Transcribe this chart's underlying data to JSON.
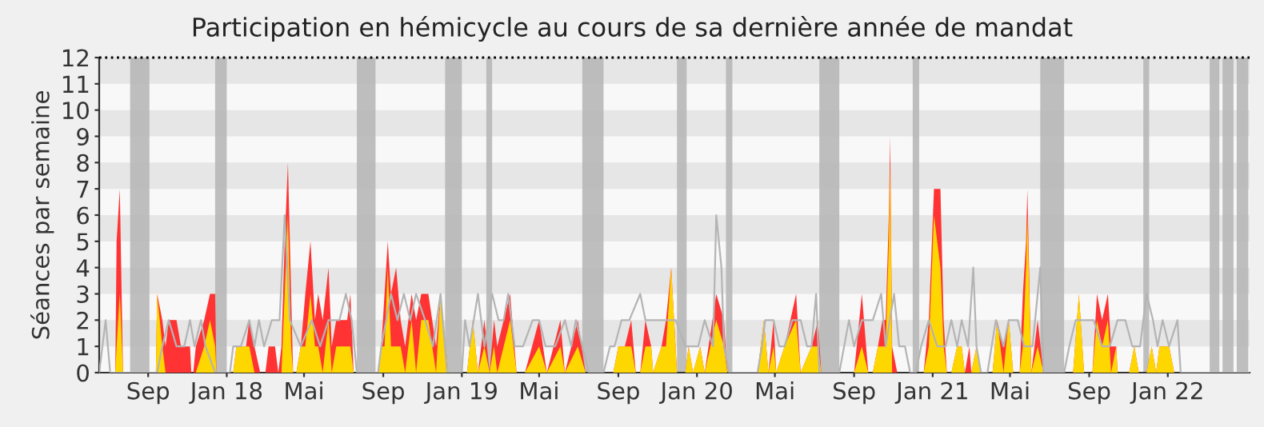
{
  "chart_data": {
    "type": "area",
    "title": "Participation en hémicycle au cours de sa dernière année de mandat",
    "ylabel": "Séances par semaine",
    "xlim": [
      "2017-06-17",
      "2022-05-08"
    ],
    "ylim": [
      0,
      12
    ],
    "yticks": [
      0,
      1,
      2,
      3,
      4,
      5,
      6,
      7,
      8,
      9,
      10,
      11,
      12
    ],
    "xticks": [
      {
        "value": "2017-09-01",
        "label": "Sep"
      },
      {
        "value": "2018-01-01",
        "label": "Jan 18"
      },
      {
        "value": "2018-05-01",
        "label": "Mai"
      },
      {
        "value": "2018-09-01",
        "label": "Sep"
      },
      {
        "value": "2019-01-01",
        "label": "Jan 19"
      },
      {
        "value": "2019-05-01",
        "label": "Mai"
      },
      {
        "value": "2019-09-01",
        "label": "Sep"
      },
      {
        "value": "2020-01-01",
        "label": "Jan 20"
      },
      {
        "value": "2020-05-01",
        "label": "Mai"
      },
      {
        "value": "2020-09-01",
        "label": "Sep"
      },
      {
        "value": "2021-01-01",
        "label": "Jan 21"
      },
      {
        "value": "2021-05-01",
        "label": "Mai"
      },
      {
        "value": "2021-09-01",
        "label": "Sep"
      },
      {
        "value": "2022-01-01",
        "label": "Jan 22"
      }
    ],
    "legend": false,
    "x": [
      "2017-06-17",
      "2017-07-12",
      "2017-07-14",
      "2017-07-19",
      "2017-07-24",
      "2017-09-13",
      "2017-09-15",
      "2017-09-23",
      "2017-09-28",
      "2017-10-03",
      "2017-10-15",
      "2017-10-22",
      "2017-11-05",
      "2017-11-07",
      "2017-11-10",
      "2017-11-14",
      "2017-11-27",
      "2017-12-06",
      "2017-12-14",
      "2017-12-16",
      "2018-01-11",
      "2018-01-16",
      "2018-01-31",
      "2018-02-05",
      "2018-02-13",
      "2018-02-22",
      "2018-03-02",
      "2018-03-07",
      "2018-03-17",
      "2018-03-22",
      "2018-03-27",
      "2018-04-01",
      "2018-04-06",
      "2018-04-11",
      "2018-04-14",
      "2018-04-19",
      "2018-04-26",
      "2018-05-03",
      "2018-05-11",
      "2018-05-18",
      "2018-05-23",
      "2018-05-30",
      "2018-06-08",
      "2018-06-13",
      "2018-06-20",
      "2018-07-07",
      "2018-07-12",
      "2018-07-17",
      "2018-08-24",
      "2018-08-29",
      "2018-09-03",
      "2018-09-08",
      "2018-09-13",
      "2018-09-21",
      "2018-09-28",
      "2018-10-05",
      "2018-10-15",
      "2018-10-22",
      "2018-10-30",
      "2018-11-10",
      "2018-11-22",
      "2018-11-29",
      "2018-12-11",
      "2019-01-09",
      "2019-01-18",
      "2019-01-26",
      "2019-02-05",
      "2019-02-13",
      "2019-02-20",
      "2019-02-25",
      "2019-03-07",
      "2019-03-17",
      "2019-03-27",
      "2019-04-09",
      "2019-05-01",
      "2019-05-13",
      "2019-06-03",
      "2019-06-10",
      "2019-06-30",
      "2019-07-12",
      "2019-08-24",
      "2019-09-01",
      "2019-09-11",
      "2019-09-21",
      "2019-09-28",
      "2019-10-05",
      "2019-10-13",
      "2019-10-22",
      "2019-10-25",
      "2019-11-07",
      "2019-11-14",
      "2019-11-22",
      "2019-12-01",
      "2019-12-14",
      "2019-12-19",
      "2019-12-26",
      "2020-01-06",
      "2020-01-13",
      "2020-01-31",
      "2020-02-12",
      "2020-02-17",
      "2020-04-04",
      "2020-04-14",
      "2020-04-21",
      "2020-04-29",
      "2020-05-03",
      "2020-05-16",
      "2020-06-03",
      "2020-06-10",
      "2020-06-27",
      "2020-07-07",
      "2020-07-12",
      "2020-09-01",
      "2020-09-13",
      "2020-09-23",
      "2020-09-30",
      "2020-10-08",
      "2020-10-15",
      "2020-10-20",
      "2020-10-25",
      "2020-10-27",
      "2020-10-30",
      "2020-11-07",
      "2020-12-18",
      "2020-12-26",
      "2021-01-03",
      "2021-01-13",
      "2021-01-18",
      "2021-01-23",
      "2021-01-30",
      "2021-02-08",
      "2021-02-15",
      "2021-02-20",
      "2021-02-27",
      "2021-03-02",
      "2021-03-10",
      "2021-03-17",
      "2021-04-04",
      "2021-04-11",
      "2021-04-21",
      "2021-04-29",
      "2021-05-06",
      "2021-05-16",
      "2021-05-21",
      "2021-05-26",
      "2021-05-28",
      "2021-06-03",
      "2021-06-13",
      "2021-06-22",
      "2021-08-07",
      "2021-08-16",
      "2021-08-24",
      "2021-09-06",
      "2021-09-13",
      "2021-09-21",
      "2021-09-30",
      "2021-10-05",
      "2021-10-13",
      "2021-10-15",
      "2021-11-02",
      "2021-11-10",
      "2021-11-17",
      "2021-11-29",
      "2021-12-07",
      "2021-12-14",
      "2021-12-19",
      "2022-01-03",
      "2022-01-11",
      "2022-05-08"
    ],
    "series": [
      {
        "type": "line",
        "color": "#b4b4b4",
        "x": [
          "2017-06-17",
          "2017-06-27",
          "2017-07-04",
          "2017-09-15",
          "2017-09-23",
          "2017-10-03",
          "2017-10-15",
          "2017-10-27",
          "2017-11-05",
          "2017-11-12",
          "2017-11-22",
          "2017-11-29",
          "2017-12-14",
          "2018-01-06",
          "2018-01-11",
          "2018-01-23",
          "2018-02-05",
          "2018-02-13",
          "2018-02-20",
          "2018-02-28",
          "2018-03-12",
          "2018-03-24",
          "2018-04-01",
          "2018-04-09",
          "2018-04-26",
          "2018-05-13",
          "2018-05-26",
          "2018-06-08",
          "2018-06-25",
          "2018-07-05",
          "2018-07-14",
          "2018-07-22",
          "2018-08-24",
          "2018-08-29",
          "2018-09-13",
          "2018-09-23",
          "2018-10-03",
          "2018-10-13",
          "2018-10-22",
          "2018-11-05",
          "2018-11-17",
          "2018-11-29",
          "2018-12-09",
          "2019-01-01",
          "2019-01-06",
          "2019-01-13",
          "2019-01-26",
          "2019-02-05",
          "2019-02-17",
          "2019-02-27",
          "2019-03-07",
          "2019-03-14",
          "2019-03-24",
          "2019-04-06",
          "2019-04-21",
          "2019-05-01",
          "2019-05-11",
          "2019-05-26",
          "2019-06-10",
          "2019-06-20",
          "2019-06-27",
          "2019-07-07",
          "2019-07-17",
          "2019-08-09",
          "2019-08-19",
          "2019-08-26",
          "2019-09-06",
          "2019-09-18",
          "2019-10-05",
          "2019-10-13",
          "2019-11-10",
          "2019-11-19",
          "2019-11-29",
          "2019-12-14",
          "2020-01-03",
          "2020-01-13",
          "2020-01-26",
          "2020-01-31",
          "2020-02-08",
          "2020-02-12",
          "2020-02-20",
          "2020-02-25",
          "2020-04-04",
          "2020-04-11",
          "2020-04-16",
          "2020-04-29",
          "2020-05-08",
          "2020-05-16",
          "2020-05-28",
          "2020-06-10",
          "2020-06-20",
          "2020-06-27",
          "2020-07-04",
          "2020-07-09",
          "2020-08-09",
          "2020-08-24",
          "2020-09-01",
          "2020-09-13",
          "2020-09-30",
          "2020-10-13",
          "2020-10-20",
          "2020-11-02",
          "2020-11-10",
          "2020-11-19",
          "2020-11-27",
          "2020-12-06",
          "2020-12-14",
          "2020-12-26",
          "2021-01-08",
          "2021-01-21",
          "2021-01-30",
          "2021-02-08",
          "2021-02-15",
          "2021-02-25",
          "2021-03-05",
          "2021-03-10",
          "2021-03-17",
          "2021-03-27",
          "2021-04-09",
          "2021-04-21",
          "2021-04-29",
          "2021-05-13",
          "2021-05-23",
          "2021-06-05",
          "2021-06-17",
          "2021-06-22",
          "2021-07-24",
          "2021-08-01",
          "2021-08-11",
          "2021-08-26",
          "2021-09-08",
          "2021-09-21",
          "2021-10-03",
          "2021-10-15",
          "2021-10-27",
          "2021-11-07",
          "2021-11-19",
          "2021-11-29",
          "2021-12-09",
          "2021-12-16",
          "2021-12-24",
          "2022-01-03",
          "2022-01-16",
          "2022-01-21",
          "2022-05-08"
        ],
        "values": [
          0,
          2,
          0,
          0,
          1,
          2,
          1,
          1,
          2,
          1,
          2,
          1,
          0,
          0,
          1,
          1,
          2,
          1,
          2,
          1,
          2,
          2,
          6,
          2,
          1,
          2,
          1,
          2,
          2,
          3,
          2,
          0,
          0,
          1,
          3,
          2,
          3,
          2,
          3,
          2,
          1,
          3,
          0,
          0,
          2,
          1,
          3,
          1,
          3,
          2,
          2,
          3,
          1,
          1,
          2,
          2,
          1,
          1,
          2,
          1,
          2,
          1,
          0,
          0,
          1,
          1,
          2,
          2,
          3,
          2,
          2,
          2,
          2,
          1,
          1,
          2,
          1,
          6,
          4,
          1,
          0,
          0,
          0,
          1,
          2,
          2,
          1,
          1,
          2,
          2,
          1,
          1,
          3,
          0,
          0,
          2,
          1,
          2,
          2,
          3,
          1,
          3,
          1,
          1,
          0,
          0,
          1,
          2,
          1,
          1,
          2,
          1,
          2,
          1,
          4,
          1,
          0,
          0,
          2,
          1,
          2,
          2,
          1,
          1,
          4,
          0,
          0,
          1,
          2,
          2,
          2,
          1,
          1,
          2,
          2,
          1,
          1,
          3,
          2,
          1,
          2,
          1,
          2,
          0,
          0
        ]
      },
      {
        "color": "#ff3333",
        "values": [
          0,
          0,
          5,
          7,
          0,
          0,
          3,
          2,
          1,
          2,
          2,
          1,
          1,
          0,
          0,
          1,
          2,
          3,
          3,
          0,
          0,
          1,
          1,
          2,
          1,
          0,
          0,
          1,
          1,
          0,
          1,
          5,
          8,
          3,
          0,
          0,
          1,
          3,
          5,
          2,
          3,
          2,
          4,
          1,
          2,
          2,
          3,
          0,
          0,
          1,
          3,
          5,
          3,
          4,
          2,
          1,
          3,
          2,
          3,
          3,
          1,
          3,
          0,
          0,
          2,
          0,
          2,
          0,
          2,
          1,
          2,
          3,
          0,
          0,
          2,
          0,
          2,
          0,
          2,
          0,
          0,
          1,
          1,
          2,
          0,
          0,
          2,
          1,
          0,
          1,
          2,
          4,
          0,
          0,
          1,
          0,
          1,
          0,
          3,
          2,
          0,
          0,
          2,
          0,
          2,
          0,
          1,
          3,
          0,
          1,
          2,
          0,
          0,
          3,
          0,
          0,
          1,
          2,
          2,
          6,
          9,
          1,
          0,
          0,
          2,
          7,
          7,
          2,
          0,
          0,
          1,
          1,
          0,
          1,
          0,
          1,
          0,
          0,
          2,
          1,
          2,
          0,
          0,
          3,
          5,
          7,
          0,
          2,
          0,
          0,
          3,
          0,
          0,
          3,
          2,
          3,
          1,
          1,
          0,
          0,
          1,
          0,
          0,
          1,
          0,
          1,
          1,
          0,
          0
        ]
      },
      {
        "color": "#ffd700",
        "values": [
          0,
          0,
          1,
          3,
          0,
          0,
          3,
          1,
          0,
          0,
          0,
          0,
          0,
          0,
          0,
          0,
          1,
          2,
          1,
          0,
          0,
          1,
          1,
          1,
          0,
          0,
          0,
          0,
          0,
          0,
          0,
          3,
          6,
          1,
          0,
          0,
          1,
          1,
          3,
          1,
          1,
          0,
          2,
          0,
          1,
          1,
          1,
          0,
          0,
          1,
          1,
          4,
          1,
          1,
          1,
          0,
          2,
          0,
          2,
          2,
          0,
          3,
          0,
          0,
          2,
          0,
          1,
          0,
          1,
          0,
          1,
          2,
          0,
          0,
          1,
          0,
          1,
          0,
          1,
          0,
          0,
          1,
          1,
          1,
          0,
          0,
          1,
          1,
          0,
          1,
          1,
          4,
          0,
          0,
          1,
          0,
          1,
          0,
          2,
          1,
          0,
          0,
          2,
          0,
          1,
          0,
          1,
          2,
          0,
          1,
          1,
          0,
          0,
          1,
          0,
          0,
          1,
          1,
          1,
          5,
          8,
          0,
          0,
          0,
          1,
          6,
          4,
          1,
          0,
          0,
          1,
          1,
          0,
          0,
          0,
          1,
          0,
          0,
          2,
          0,
          2,
          0,
          0,
          1,
          4,
          6,
          0,
          1,
          0,
          0,
          3,
          0,
          0,
          2,
          1,
          2,
          0,
          1,
          0,
          0,
          1,
          0,
          0,
          1,
          0,
          1,
          1,
          0,
          0
        ]
      }
    ],
    "bands": [
      {
        "axis": "y",
        "from": 1,
        "to": 2,
        "color": "#e6e6e6"
      },
      {
        "axis": "y",
        "from": 3,
        "to": 4,
        "color": "#e6e6e6"
      },
      {
        "axis": "y",
        "from": 5,
        "to": 6,
        "color": "#e6e6e6"
      },
      {
        "axis": "y",
        "from": 7,
        "to": 8,
        "color": "#e6e6e6"
      },
      {
        "axis": "y",
        "from": 9,
        "to": 10,
        "color": "#e6e6e6"
      },
      {
        "axis": "y",
        "from": 11,
        "to": 12,
        "color": "#e6e6e6"
      },
      {
        "axis": "x",
        "from": "2017-08-04",
        "to": "2017-09-03",
        "color": "#b4b4b4"
      },
      {
        "axis": "x",
        "from": "2017-12-14",
        "to": "2018-01-01",
        "color": "#b4b4b4"
      },
      {
        "axis": "x",
        "from": "2018-07-22",
        "to": "2018-08-20",
        "color": "#b4b4b4"
      },
      {
        "axis": "x",
        "from": "2018-12-06",
        "to": "2019-01-01",
        "color": "#b4b4b4"
      },
      {
        "axis": "x",
        "from": "2019-02-08",
        "to": "2019-02-17",
        "color": "#b4b4b4"
      },
      {
        "axis": "x",
        "from": "2019-07-07",
        "to": "2019-08-09",
        "color": "#b4b4b4"
      },
      {
        "axis": "x",
        "from": "2019-12-01",
        "to": "2019-12-16",
        "color": "#b4b4b4"
      },
      {
        "axis": "x",
        "from": "2020-02-15",
        "to": "2020-02-25",
        "color": "#b4b4b4"
      },
      {
        "axis": "x",
        "from": "2020-07-09",
        "to": "2020-08-09",
        "color": "#b4b4b4"
      },
      {
        "axis": "x",
        "from": "2020-12-01",
        "to": "2020-12-11",
        "color": "#b4b4b4"
      },
      {
        "axis": "x",
        "from": "2021-06-17",
        "to": "2021-07-24",
        "color": "#b4b4b4"
      },
      {
        "axis": "x",
        "from": "2021-11-24",
        "to": "2021-12-03",
        "color": "#b4b4b4"
      },
      {
        "axis": "x",
        "from": "2022-03-07",
        "to": "2022-03-22",
        "color": "#b4b4b4"
      },
      {
        "axis": "x",
        "from": "2022-03-27",
        "to": "2022-04-13",
        "color": "#b4b4b4"
      },
      {
        "axis": "x",
        "from": "2022-04-18",
        "to": "2022-05-06",
        "color": "#b4b4b4"
      }
    ],
    "ref_lines": [
      {
        "axis": "y",
        "value": 12,
        "color": "#000000",
        "line_style": "dotted"
      }
    ]
  }
}
